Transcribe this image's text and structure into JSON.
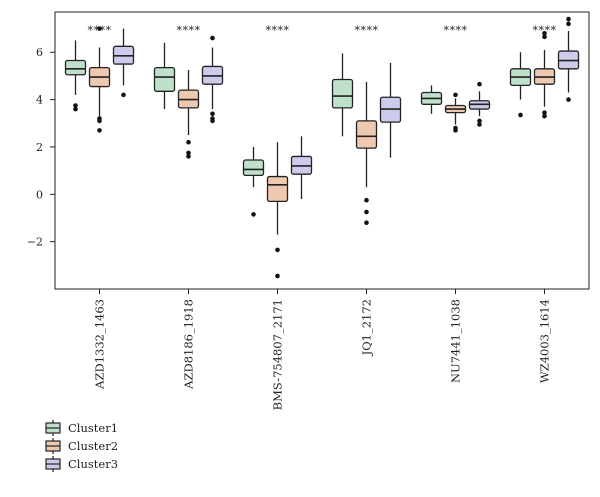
{
  "chart_data": {
    "type": "box",
    "categories": [
      "AZD1332_1463",
      "AZD8186_1918",
      "BMS-754807_2171",
      "JQ1_2172",
      "NU7441_1038",
      "WZ4003_1614"
    ],
    "significance": [
      "****",
      "****",
      "****",
      "****",
      "****",
      "****"
    ],
    "y_ticks": [
      -2,
      0,
      2,
      4,
      6
    ],
    "ylim": [
      -4.0,
      7.7
    ],
    "xlabel": "",
    "ylabel": "",
    "grid": false,
    "legend_position": "bottom-left",
    "series": [
      {
        "name": "Cluster1",
        "color": "#bfe0cb",
        "boxes": [
          {
            "whisker_low": 4.2,
            "q1": 5.05,
            "median": 5.3,
            "q3": 5.65,
            "whisker_high": 6.5,
            "outliers": [
              3.75,
              3.6
            ]
          },
          {
            "whisker_low": 3.6,
            "q1": 4.35,
            "median": 4.95,
            "q3": 5.35,
            "whisker_high": 6.4,
            "outliers": []
          },
          {
            "whisker_low": 0.3,
            "q1": 0.8,
            "median": 1.05,
            "q3": 1.45,
            "whisker_high": 2.0,
            "outliers": [
              -0.85
            ]
          },
          {
            "whisker_low": 2.45,
            "q1": 3.65,
            "median": 4.15,
            "q3": 4.85,
            "whisker_high": 5.95,
            "outliers": []
          },
          {
            "whisker_low": 3.4,
            "q1": 3.8,
            "median": 4.05,
            "q3": 4.3,
            "whisker_high": 4.6,
            "outliers": []
          },
          {
            "whisker_low": 4.0,
            "q1": 4.6,
            "median": 4.95,
            "q3": 5.3,
            "whisker_high": 6.0,
            "outliers": [
              3.35
            ]
          }
        ]
      },
      {
        "name": "Cluster2",
        "color": "#efc8b0",
        "boxes": [
          {
            "whisker_low": 3.3,
            "q1": 4.55,
            "median": 4.95,
            "q3": 5.35,
            "whisker_high": 6.2,
            "outliers": [
              7.0,
              3.2,
              3.1,
              2.7
            ]
          },
          {
            "whisker_low": 2.5,
            "q1": 3.65,
            "median": 4.0,
            "q3": 4.4,
            "whisker_high": 5.25,
            "outliers": [
              2.2,
              1.75,
              1.6
            ]
          },
          {
            "whisker_low": -1.7,
            "q1": -0.3,
            "median": 0.4,
            "q3": 0.75,
            "whisker_high": 2.2,
            "outliers": [
              -2.35,
              -3.45
            ]
          },
          {
            "whisker_low": 0.3,
            "q1": 1.95,
            "median": 2.45,
            "q3": 3.1,
            "whisker_high": 4.75,
            "outliers": [
              -0.25,
              -0.75,
              -1.2
            ]
          },
          {
            "whisker_low": 2.95,
            "q1": 3.45,
            "median": 3.6,
            "q3": 3.75,
            "whisker_high": 4.05,
            "outliers": [
              4.2,
              2.8,
              2.7
            ]
          },
          {
            "whisker_low": 3.7,
            "q1": 4.65,
            "median": 4.95,
            "q3": 5.3,
            "whisker_high": 6.1,
            "outliers": [
              6.8,
              6.65,
              3.45,
              3.3
            ]
          }
        ]
      },
      {
        "name": "Cluster3",
        "color": "#cdcbeb",
        "boxes": [
          {
            "whisker_low": 4.6,
            "q1": 5.5,
            "median": 5.85,
            "q3": 6.25,
            "whisker_high": 7.0,
            "outliers": [
              4.2
            ]
          },
          {
            "whisker_low": 3.6,
            "q1": 4.65,
            "median": 5.0,
            "q3": 5.4,
            "whisker_high": 6.2,
            "outliers": [
              6.6,
              3.4,
              3.2,
              3.1
            ]
          },
          {
            "whisker_low": -0.2,
            "q1": 0.85,
            "median": 1.2,
            "q3": 1.6,
            "whisker_high": 2.45,
            "outliers": []
          },
          {
            "whisker_low": 1.55,
            "q1": 3.05,
            "median": 3.6,
            "q3": 4.1,
            "whisker_high": 5.55,
            "outliers": []
          },
          {
            "whisker_low": 3.3,
            "q1": 3.6,
            "median": 3.8,
            "q3": 3.95,
            "whisker_high": 4.35,
            "outliers": [
              4.65,
              3.1,
              2.95
            ]
          },
          {
            "whisker_low": 4.3,
            "q1": 5.3,
            "median": 5.65,
            "q3": 6.05,
            "whisker_high": 6.9,
            "outliers": [
              7.4,
              7.2,
              4.0
            ]
          }
        ]
      }
    ]
  }
}
